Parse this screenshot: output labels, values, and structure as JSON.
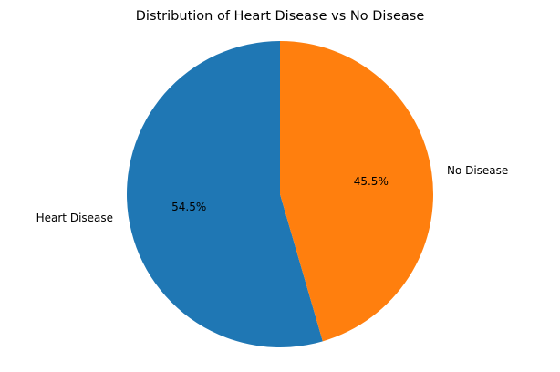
{
  "chart_data": {
    "type": "pie",
    "title": "Distribution of Heart Disease vs No Disease",
    "start_angle_deg": 90,
    "direction": "counterclockwise",
    "slices": [
      {
        "label": "Heart Disease",
        "value": 54.5,
        "pct_label": "54.5%",
        "color": "#1f77b4"
      },
      {
        "label": "No Disease",
        "value": 45.5,
        "pct_label": "45.5%",
        "color": "#ff7f0e"
      }
    ]
  }
}
